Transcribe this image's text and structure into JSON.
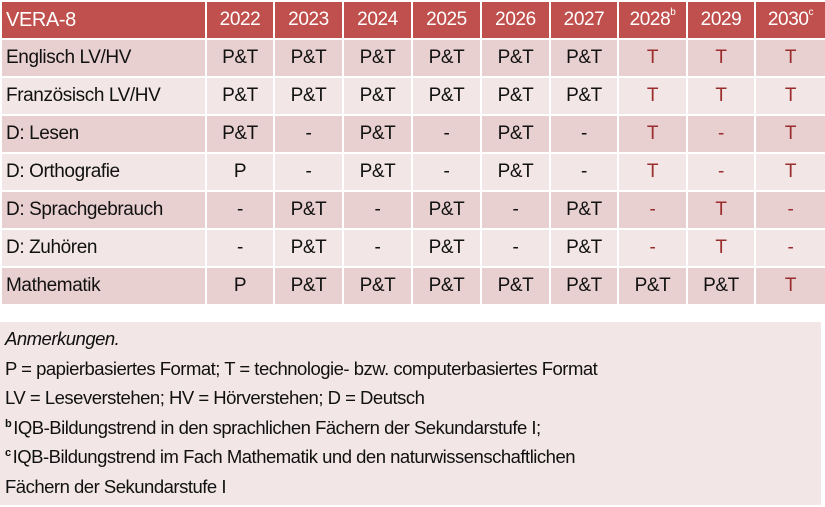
{
  "table": {
    "header": [
      "VERA-8",
      "2022",
      "2023",
      "2024",
      "2025",
      "2026",
      "2027",
      "2028",
      "2029",
      "2030"
    ],
    "header_superscripts": {
      "7": "b",
      "9": "c"
    },
    "rows": [
      [
        "Englisch LV/HV",
        "P&T",
        "P&T",
        "P&T",
        "P&T",
        "P&T",
        "P&T",
        "T",
        "T",
        "T"
      ],
      [
        "Französisch LV/HV",
        "P&T",
        "P&T",
        "P&T",
        "P&T",
        "P&T",
        "P&T",
        "T",
        "T",
        "T"
      ],
      [
        "D: Lesen",
        "P&T",
        "-",
        "P&T",
        "-",
        "P&T",
        "-",
        "T",
        "-",
        "T"
      ],
      [
        "D: Orthografie",
        "P",
        "-",
        "P&T",
        "-",
        "P&T",
        "-",
        "T",
        "-",
        "T"
      ],
      [
        "D: Sprachgebrauch",
        "-",
        "P&T",
        "-",
        "P&T",
        "-",
        "P&T",
        "-",
        "T",
        "-"
      ],
      [
        "D: Zuhören",
        "-",
        "P&T",
        "-",
        "P&T",
        "-",
        "P&T",
        "-",
        "T",
        "-"
      ],
      [
        "Mathematik",
        "P",
        "P&T",
        "P&T",
        "P&T",
        "P&T",
        "P&T",
        "P&T",
        "P&T",
        "T"
      ]
    ]
  },
  "colors": {
    "header": "#c0504d",
    "row_dark": "#e8cfd0",
    "row_light": "#f2e6e6",
    "highlight_text": "#9b2d2d"
  },
  "notes": {
    "title": "Anmerkungen.",
    "line1": "P = papierbasiertes Format; T = technologie- bzw. computerbasiertes Format",
    "line2": "LV = Leseverstehen; HV = Hörverstehen; D = Deutsch",
    "b_mark": "b",
    "b_text": "IQB-Bildungstrend in den sprachlichen Fächern der Sekundarstufe I;",
    "c_mark": "c",
    "c_text1": "IQB-Bildungstrend im Fach Mathematik und den naturwissenschaftlichen",
    "c_text2": "Fächern der Sekundarstufe I"
  }
}
